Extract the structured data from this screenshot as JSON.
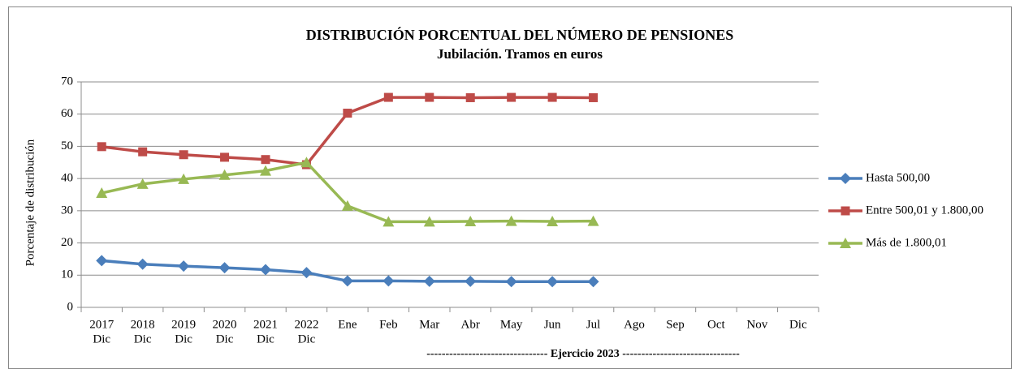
{
  "chart_data": {
    "type": "line",
    "title": "DISTRIBUCIÓN PORCENTUAL DEL NÚMERO DE PENSIONES",
    "subtitle": "Jubilación. Tramos en euros",
    "y_label": "Porcentaje de distribución",
    "annotation": "-------------------------------- Ejercicio 2023 -------------------------------",
    "categories": [
      [
        "2017",
        "Dic"
      ],
      [
        "2018",
        "Dic"
      ],
      [
        "2019",
        "Dic"
      ],
      [
        "2020",
        "Dic"
      ],
      [
        "2021",
        "Dic"
      ],
      [
        "2022",
        "Dic"
      ],
      [
        "Ene"
      ],
      [
        "Feb"
      ],
      [
        "Mar"
      ],
      [
        "Abr"
      ],
      [
        "May"
      ],
      [
        "Jun"
      ],
      [
        "Jul"
      ],
      [
        "Ago"
      ],
      [
        "Sep"
      ],
      [
        "Oct"
      ],
      [
        "Nov"
      ],
      [
        "Dic"
      ]
    ],
    "series": [
      {
        "name": "Hasta 500,00",
        "color": "#4a7ebb",
        "marker": "diamond",
        "values": [
          14.5,
          13.4,
          12.8,
          12.3,
          11.7,
          10.8,
          8.2,
          8.2,
          8.1,
          8.1,
          8.0,
          8.0,
          8.0,
          null,
          null,
          null,
          null,
          null
        ]
      },
      {
        "name": "Entre 500,01 y 1.800,00",
        "color": "#be4b48",
        "marker": "square",
        "values": [
          49.9,
          48.3,
          47.4,
          46.6,
          45.9,
          44.3,
          60.3,
          65.2,
          65.2,
          65.1,
          65.2,
          65.2,
          65.1,
          null,
          null,
          null,
          null,
          null
        ]
      },
      {
        "name": "Más de 1.800,01",
        "color": "#98b954",
        "marker": "triangle",
        "values": [
          35.5,
          38.3,
          39.8,
          41.1,
          42.4,
          45.0,
          31.5,
          26.6,
          26.6,
          26.7,
          26.8,
          26.7,
          26.8,
          null,
          null,
          null,
          null,
          null
        ]
      }
    ],
    "ylim": [
      0,
      70
    ],
    "yticks": [
      0,
      10,
      20,
      30,
      40,
      50,
      60,
      70
    ],
    "grid": true,
    "legend": "right"
  }
}
